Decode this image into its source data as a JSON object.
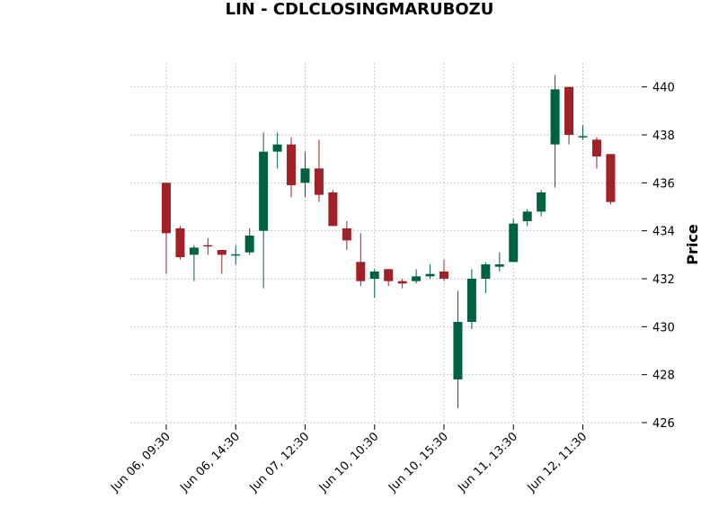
{
  "chart_data": {
    "type": "candlestick",
    "title": "LIN - CDLCLOSINGMARUBOZU",
    "ylabel": "Price",
    "ylim": [
      426,
      441
    ],
    "y_ticks": [
      426,
      428,
      430,
      432,
      434,
      436,
      438,
      440
    ],
    "y_axis_side": "right",
    "grid": true,
    "x_tick_labels": [
      {
        "index": 0,
        "label": "Jun 06, 09:30"
      },
      {
        "index": 5,
        "label": "Jun 06, 14:30"
      },
      {
        "index": 10,
        "label": "Jun 07, 12:30"
      },
      {
        "index": 15,
        "label": "Jun 10, 10:30"
      },
      {
        "index": 20,
        "label": "Jun 10, 15:30"
      },
      {
        "index": 25,
        "label": "Jun 11, 13:30"
      },
      {
        "index": 30,
        "label": "Jun 12, 11:30"
      }
    ],
    "colors": {
      "up": "#006340",
      "down": "#a02128",
      "grid": "#b0b0b0"
    },
    "candles": [
      {
        "o": 436.0,
        "h": 436.0,
        "l": 432.2,
        "c": 433.9
      },
      {
        "o": 434.1,
        "h": 434.2,
        "l": 432.8,
        "c": 432.9
      },
      {
        "o": 433.0,
        "h": 433.4,
        "l": 431.9,
        "c": 433.3
      },
      {
        "o": 433.4,
        "h": 433.7,
        "l": 433.0,
        "c": 433.35
      },
      {
        "o": 433.2,
        "h": 433.2,
        "l": 432.2,
        "c": 433.0
      },
      {
        "o": 433.0,
        "h": 433.4,
        "l": 432.6,
        "c": 433.02
      },
      {
        "o": 433.1,
        "h": 434.1,
        "l": 433.0,
        "c": 433.8
      },
      {
        "o": 434.0,
        "h": 438.1,
        "l": 431.6,
        "c": 437.3
      },
      {
        "o": 437.3,
        "h": 438.1,
        "l": 436.6,
        "c": 437.6
      },
      {
        "o": 437.6,
        "h": 437.9,
        "l": 435.4,
        "c": 435.9
      },
      {
        "o": 436.0,
        "h": 437.3,
        "l": 435.4,
        "c": 436.6
      },
      {
        "o": 436.6,
        "h": 437.8,
        "l": 435.2,
        "c": 435.5
      },
      {
        "o": 435.6,
        "h": 435.7,
        "l": 434.2,
        "c": 434.2
      },
      {
        "o": 434.1,
        "h": 434.4,
        "l": 433.2,
        "c": 433.6
      },
      {
        "o": 432.7,
        "h": 433.9,
        "l": 431.7,
        "c": 431.9
      },
      {
        "o": 432.0,
        "h": 432.4,
        "l": 431.2,
        "c": 432.3
      },
      {
        "o": 432.4,
        "h": 432.4,
        "l": 431.7,
        "c": 431.9
      },
      {
        "o": 431.9,
        "h": 432.0,
        "l": 431.6,
        "c": 431.8
      },
      {
        "o": 431.9,
        "h": 432.4,
        "l": 431.8,
        "c": 432.1
      },
      {
        "o": 432.1,
        "h": 432.6,
        "l": 432.0,
        "c": 432.2
      },
      {
        "o": 432.3,
        "h": 432.8,
        "l": 431.9,
        "c": 432.0
      },
      {
        "o": 427.8,
        "h": 431.5,
        "l": 426.6,
        "c": 430.2
      },
      {
        "o": 430.2,
        "h": 432.4,
        "l": 429.9,
        "c": 432.0
      },
      {
        "o": 432.0,
        "h": 432.7,
        "l": 431.4,
        "c": 432.6
      },
      {
        "o": 432.5,
        "h": 433.1,
        "l": 432.3,
        "c": 432.6
      },
      {
        "o": 432.7,
        "h": 434.5,
        "l": 432.7,
        "c": 434.3
      },
      {
        "o": 434.4,
        "h": 434.9,
        "l": 434.2,
        "c": 434.8
      },
      {
        "o": 434.8,
        "h": 435.7,
        "l": 434.6,
        "c": 435.6
      },
      {
        "o": 437.6,
        "h": 440.5,
        "l": 435.8,
        "c": 439.9
      },
      {
        "o": 440.0,
        "h": 440.0,
        "l": 437.6,
        "c": 438.0
      },
      {
        "o": 437.9,
        "h": 438.4,
        "l": 437.8,
        "c": 437.95
      },
      {
        "o": 437.8,
        "h": 437.9,
        "l": 436.6,
        "c": 437.1
      },
      {
        "o": 437.2,
        "h": 437.2,
        "l": 435.1,
        "c": 435.2
      }
    ]
  }
}
